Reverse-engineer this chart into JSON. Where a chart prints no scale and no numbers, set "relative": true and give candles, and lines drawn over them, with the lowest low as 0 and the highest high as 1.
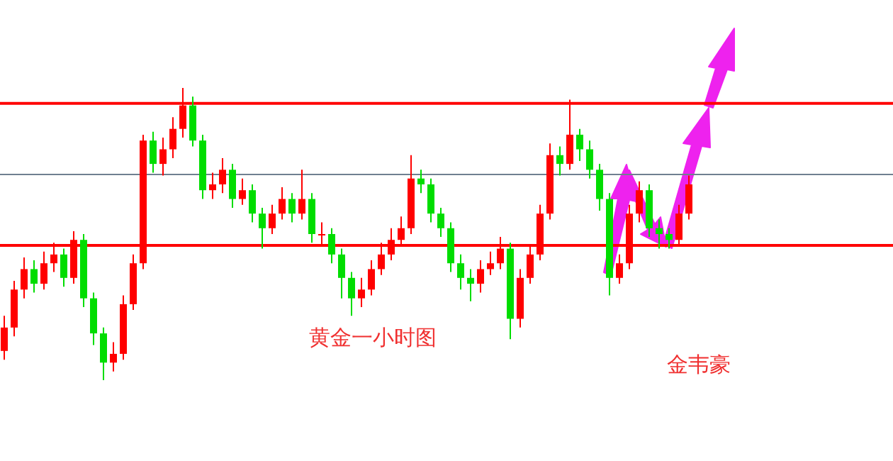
{
  "chart_data": {
    "type": "candlestick",
    "relative": true,
    "categories": [
      null,
      null,
      null,
      null,
      null,
      null,
      null,
      null,
      null,
      null,
      null,
      null,
      null,
      null,
      null,
      null,
      null,
      null,
      null,
      null,
      null,
      null,
      null,
      null,
      null,
      null,
      null,
      null,
      null,
      null,
      null,
      null,
      null,
      null,
      null,
      null,
      null,
      null,
      null,
      null,
      null,
      null,
      null,
      null,
      null,
      null,
      null,
      null,
      null,
      null,
      null,
      null,
      null,
      null,
      null,
      null,
      null,
      null,
      null,
      null,
      null,
      null,
      null,
      null,
      null,
      null,
      null,
      null,
      null,
      null
    ],
    "ohlc": [
      [
        0.1,
        0.22,
        0.07,
        0.18
      ],
      [
        0.18,
        0.34,
        0.15,
        0.31
      ],
      [
        0.31,
        0.42,
        0.28,
        0.38
      ],
      [
        0.38,
        0.41,
        0.3,
        0.33
      ],
      [
        0.33,
        0.44,
        0.31,
        0.4
      ],
      [
        0.4,
        0.47,
        0.37,
        0.43
      ],
      [
        0.43,
        0.45,
        0.32,
        0.35
      ],
      [
        0.35,
        0.51,
        0.33,
        0.48
      ],
      [
        0.48,
        0.5,
        0.25,
        0.28
      ],
      [
        0.28,
        0.3,
        0.12,
        0.16
      ],
      [
        0.16,
        0.18,
        0.0,
        0.06
      ],
      [
        0.06,
        0.13,
        0.03,
        0.09
      ],
      [
        0.09,
        0.29,
        0.07,
        0.26
      ],
      [
        0.26,
        0.43,
        0.24,
        0.4
      ],
      [
        0.4,
        0.84,
        0.38,
        0.82
      ],
      [
        0.82,
        0.85,
        0.71,
        0.74
      ],
      [
        0.74,
        0.83,
        0.7,
        0.79
      ],
      [
        0.79,
        0.9,
        0.76,
        0.86
      ],
      [
        0.86,
        1.0,
        0.83,
        0.94
      ],
      [
        0.94,
        0.97,
        0.8,
        0.82
      ],
      [
        0.82,
        0.84,
        0.62,
        0.65
      ],
      [
        0.65,
        0.71,
        0.62,
        0.67
      ],
      [
        0.67,
        0.76,
        0.64,
        0.72
      ],
      [
        0.72,
        0.74,
        0.59,
        0.62
      ],
      [
        0.62,
        0.69,
        0.6,
        0.65
      ],
      [
        0.65,
        0.67,
        0.54,
        0.57
      ],
      [
        0.57,
        0.59,
        0.45,
        0.52
      ],
      [
        0.52,
        0.6,
        0.5,
        0.57
      ],
      [
        0.57,
        0.66,
        0.55,
        0.62
      ],
      [
        0.62,
        0.64,
        0.54,
        0.57
      ],
      [
        0.57,
        0.72,
        0.55,
        0.62
      ],
      [
        0.62,
        0.64,
        0.47,
        0.5
      ],
      [
        0.5,
        0.54,
        0.46,
        0.5
      ],
      [
        0.5,
        0.52,
        0.4,
        0.43
      ],
      [
        0.43,
        0.45,
        0.28,
        0.35
      ],
      [
        0.35,
        0.37,
        0.22,
        0.28
      ],
      [
        0.28,
        0.35,
        0.25,
        0.31
      ],
      [
        0.31,
        0.41,
        0.29,
        0.38
      ],
      [
        0.38,
        0.47,
        0.36,
        0.43
      ],
      [
        0.43,
        0.52,
        0.41,
        0.48
      ],
      [
        0.48,
        0.56,
        0.46,
        0.52
      ],
      [
        0.52,
        0.77,
        0.5,
        0.69
      ],
      [
        0.69,
        0.72,
        0.64,
        0.67
      ],
      [
        0.67,
        0.69,
        0.54,
        0.57
      ],
      [
        0.57,
        0.59,
        0.49,
        0.52
      ],
      [
        0.52,
        0.54,
        0.37,
        0.4
      ],
      [
        0.4,
        0.43,
        0.31,
        0.35
      ],
      [
        0.35,
        0.38,
        0.27,
        0.33
      ],
      [
        0.33,
        0.41,
        0.3,
        0.38
      ],
      [
        0.38,
        0.44,
        0.36,
        0.4
      ],
      [
        0.4,
        0.49,
        0.38,
        0.45
      ],
      [
        0.45,
        0.47,
        0.14,
        0.21
      ],
      [
        0.21,
        0.38,
        0.18,
        0.35
      ],
      [
        0.35,
        0.46,
        0.33,
        0.43
      ],
      [
        0.43,
        0.6,
        0.41,
        0.57
      ],
      [
        0.57,
        0.81,
        0.55,
        0.77
      ],
      [
        0.77,
        0.8,
        0.7,
        0.74
      ],
      [
        0.74,
        0.96,
        0.72,
        0.84
      ],
      [
        0.84,
        0.86,
        0.75,
        0.79
      ],
      [
        0.79,
        0.82,
        0.69,
        0.72
      ],
      [
        0.72,
        0.74,
        0.58,
        0.62
      ],
      [
        0.62,
        0.64,
        0.29,
        0.35
      ],
      [
        0.35,
        0.43,
        0.33,
        0.4
      ],
      [
        0.4,
        0.6,
        0.38,
        0.57
      ],
      [
        0.57,
        0.68,
        0.54,
        0.65
      ],
      [
        0.65,
        0.67,
        0.49,
        0.52
      ],
      [
        0.52,
        0.55,
        0.45,
        0.5
      ],
      [
        0.5,
        0.52,
        0.45,
        0.48
      ],
      [
        0.48,
        0.6,
        0.46,
        0.57
      ],
      [
        0.57,
        0.7,
        0.55,
        0.67
      ]
    ],
    "ref_lines": [
      {
        "axis": "y",
        "value": 0.947,
        "color": "#ff0000"
      },
      {
        "axis": "y",
        "value": 0.704,
        "color": "#708090"
      },
      {
        "axis": "y",
        "value": 0.461,
        "color": "#ff0000"
      }
    ],
    "annotations": [
      "黄金一小时图",
      "金韦豪"
    ]
  }
}
